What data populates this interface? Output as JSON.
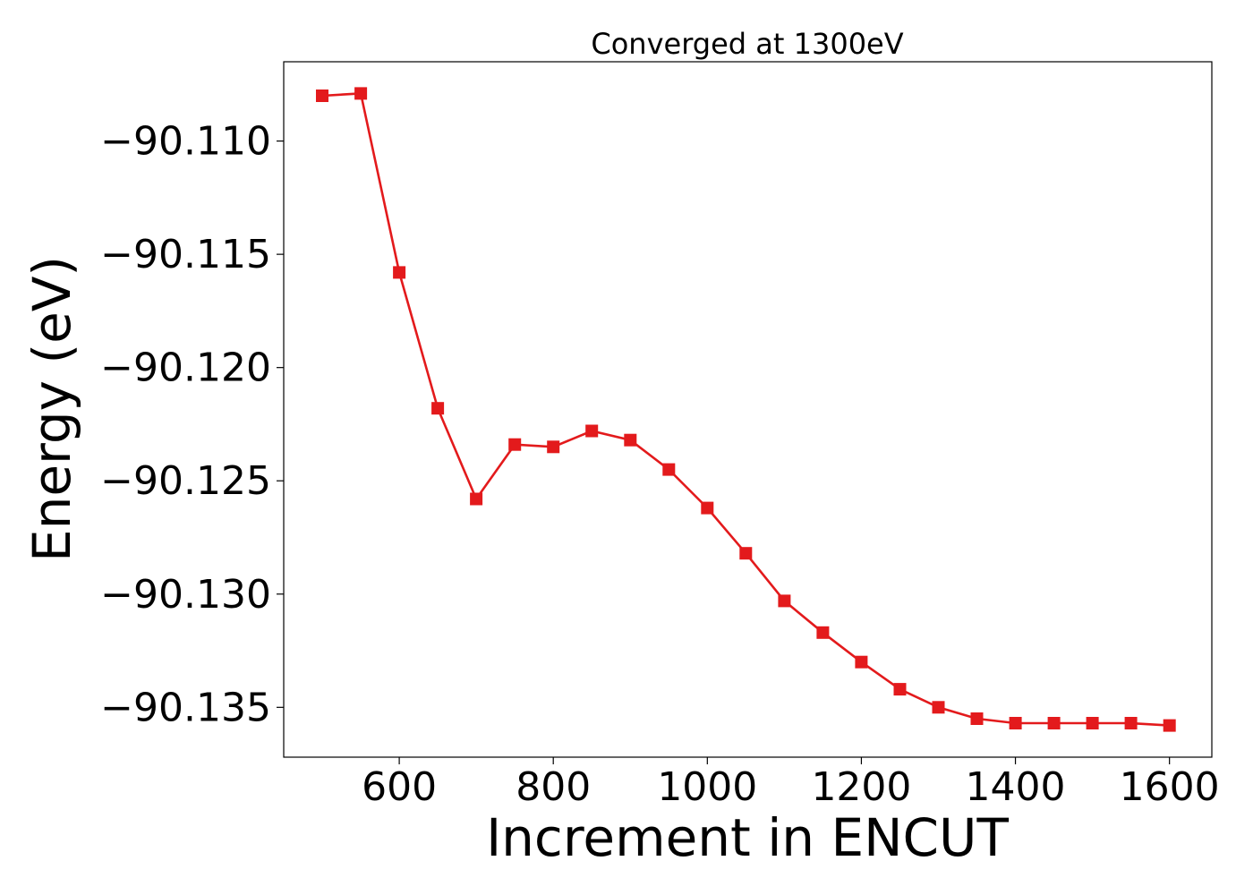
{
  "chart_data": {
    "type": "line",
    "title": "Converged at 1300eV",
    "xlabel": "Increment in ENCUT",
    "ylabel": "Energy (eV)",
    "xlim": [
      450,
      1655
    ],
    "ylim": [
      -90.1372,
      -90.1065
    ],
    "xticks": [
      600,
      800,
      1000,
      1200,
      1400,
      1600
    ],
    "xtick_labels": [
      "600",
      "800",
      "1000",
      "1200",
      "1400",
      "1600"
    ],
    "yticks": [
      -90.11,
      -90.115,
      -90.12,
      -90.125,
      -90.13,
      -90.135
    ],
    "ytick_labels": [
      "−90.110",
      "−90.115",
      "−90.120",
      "−90.125",
      "−90.130",
      "−90.135"
    ],
    "grid": false,
    "line_color": "#e31a1c",
    "marker": "square",
    "x": [
      500,
      550,
      600,
      650,
      700,
      750,
      800,
      850,
      900,
      950,
      1000,
      1050,
      1100,
      1150,
      1200,
      1250,
      1300,
      1350,
      1400,
      1450,
      1500,
      1550,
      1600
    ],
    "y": [
      -90.108,
      -90.1079,
      -90.1158,
      -90.1218,
      -90.1258,
      -90.1234,
      -90.1235,
      -90.1228,
      -90.1232,
      -90.1245,
      -90.1262,
      -90.1282,
      -90.1303,
      -90.1317,
      -90.133,
      -90.1342,
      -90.135,
      -90.1355,
      -90.1357,
      -90.1357,
      -90.1357,
      -90.1357,
      -90.1358
    ]
  }
}
